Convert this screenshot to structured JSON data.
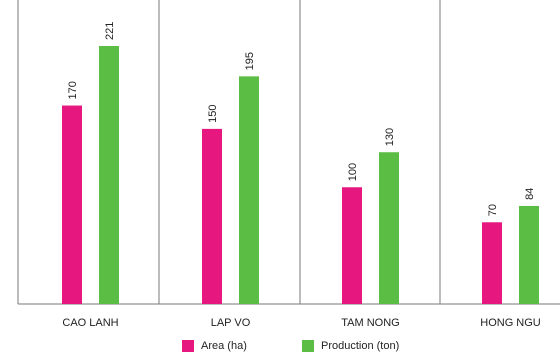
{
  "chart_data": {
    "type": "bar",
    "categories": [
      "CAO LANH",
      "LAP VO",
      "TAM NONG",
      "HONG NGU"
    ],
    "series": [
      {
        "name": "Area (ha)",
        "values": [
          170,
          150,
          100,
          70
        ],
        "color": "#e6177e"
      },
      {
        "name": "Production (ton)",
        "values": [
          221,
          195,
          130,
          84
        ],
        "color": "#5cbd45"
      }
    ],
    "ylim": [
      0,
      221
    ],
    "grid": false,
    "data_labels": true,
    "legend": "bottom-center",
    "separators": "vertical-lines-between-categories"
  }
}
